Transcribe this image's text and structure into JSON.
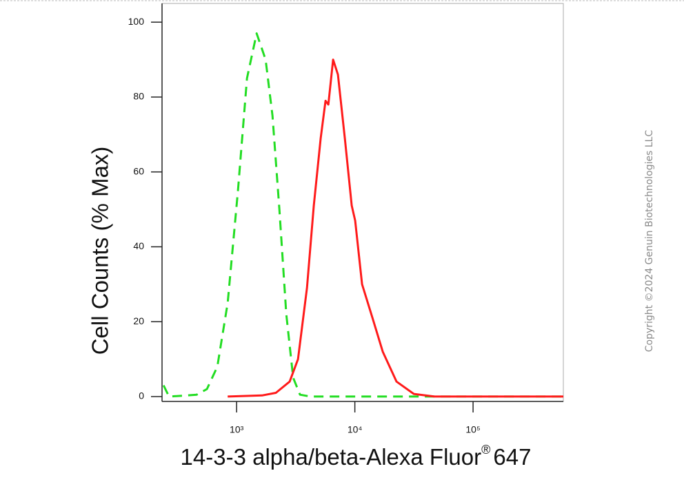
{
  "chart_data": {
    "type": "line",
    "x_label": "14-3-3 alpha/beta-Alexa Fluor",
    "x_label_sup": "®",
    "x_label_tail": "647",
    "y_label": "Cell Counts (% Max)",
    "annotation": "Copyright ©2024 Genuin Biotechnologies LLC",
    "xscale": "log",
    "xlim": [
      234,
      580000
    ],
    "ylim": [
      -1.3,
      105
    ],
    "xticks": [
      {
        "value": 1000,
        "label": "10³"
      },
      {
        "value": 10000,
        "label": "10⁴"
      },
      {
        "value": 100000,
        "label": "10⁵"
      }
    ],
    "yticks": [
      0,
      20,
      40,
      60,
      80,
      100
    ],
    "grid": false,
    "series": [
      {
        "color": "#22dd22",
        "dashed": true,
        "x": [
          241,
          268,
          375,
          459,
          561,
          687,
          840,
          1027,
          1223,
          1476,
          1758,
          2011,
          2300,
          2632,
          3009,
          3438,
          4207,
          10770,
          580000
        ],
        "values": [
          3,
          0,
          0.3,
          0.5,
          2,
          8,
          25,
          55,
          85,
          97,
          90,
          75,
          50,
          22,
          5,
          0.5,
          0,
          0,
          0
        ]
      },
      {
        "color": "#ff1a1a",
        "dashed": false,
        "x": [
          840,
          1643,
          2148,
          2810,
          3304,
          3935,
          4499,
          5144,
          5650,
          5966,
          6551,
          7195,
          8226,
          9408,
          10060,
          11510,
          14090,
          17220,
          22540,
          31550,
          47150,
          580000
        ],
        "values": [
          0,
          0.3,
          1,
          4,
          10,
          29,
          51,
          69,
          79,
          78,
          90,
          86,
          69,
          51,
          47,
          30,
          21,
          12,
          4,
          0.7,
          0,
          0
        ]
      }
    ]
  }
}
